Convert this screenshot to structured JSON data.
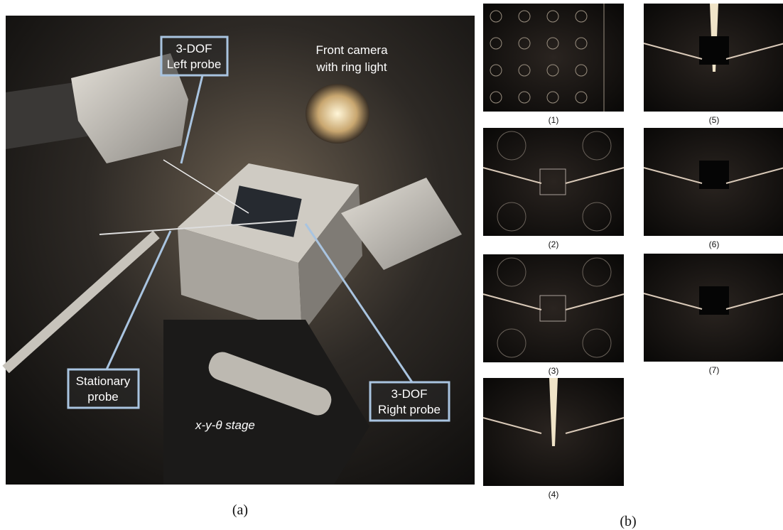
{
  "panel_a": {
    "left_probe": [
      "3-DOF",
      "Left probe"
    ],
    "front_camera": [
      "Front camera",
      "with ring light"
    ],
    "right_probe": [
      "3-DOF",
      "Right probe"
    ],
    "stationary_probe": [
      "Stationary",
      "probe"
    ],
    "stage": "x-y-θ stage",
    "caption": "(a)"
  },
  "panel_b": {
    "images": [
      {
        "caption": "(1)"
      },
      {
        "caption": "(2)"
      },
      {
        "caption": "(3)"
      },
      {
        "caption": "(4)"
      },
      {
        "caption": "(5)"
      },
      {
        "caption": "(6)"
      },
      {
        "caption": "(7)"
      }
    ],
    "caption": "(b)"
  }
}
